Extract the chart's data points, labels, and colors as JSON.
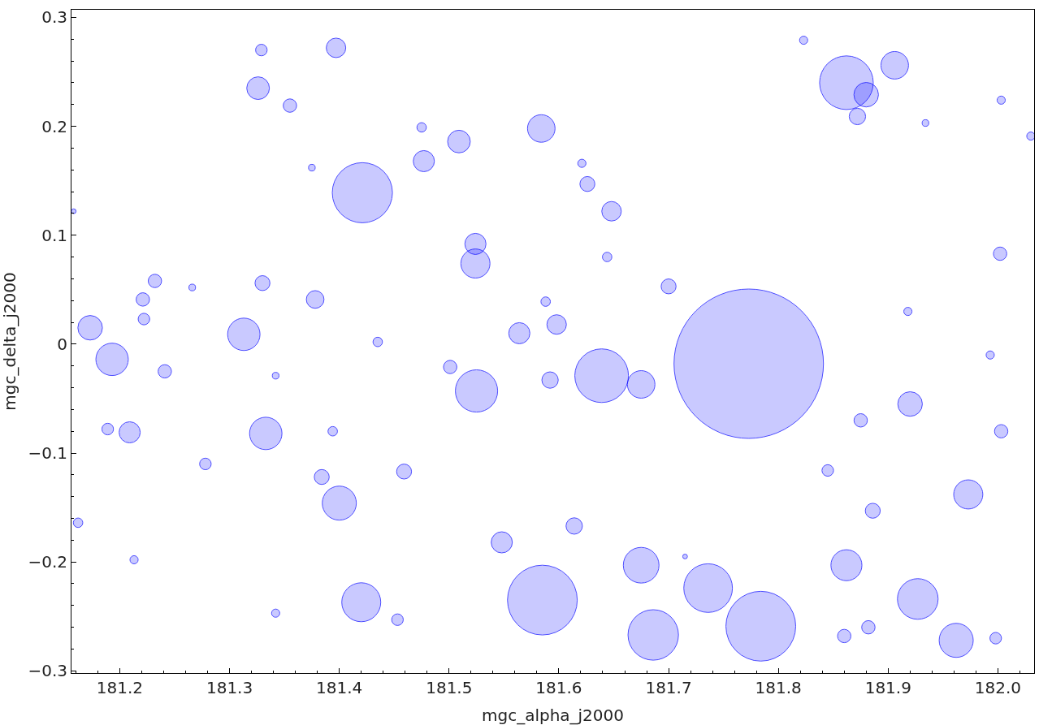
{
  "chart_data": {
    "type": "bubble",
    "xlabel": "mgc_alpha_j2000",
    "ylabel": "mgc_delta_j2000",
    "xlim": [
      181.156,
      182.033
    ],
    "ylim": [
      -0.302,
      0.307
    ],
    "xticks": [
      181.2,
      181.3,
      181.4,
      181.5,
      181.6,
      181.7,
      181.8,
      181.9,
      {
        "value": 182,
        "label": "182.0"
      }
    ],
    "yticks": [
      -0.3,
      -0.2,
      -0.1,
      0,
      0.1,
      0.2,
      0.3
    ],
    "marker": "circle",
    "series": [
      {
        "color": "#0000ff",
        "x": [
          181.773,
          181.421,
          181.585,
          181.862,
          181.784,
          181.686,
          181.736,
          181.639,
          181.525,
          181.333,
          181.313,
          181.193,
          181.173,
          181.42,
          181.4,
          181.927,
          181.962,
          181.973,
          181.862,
          181.92,
          181.675,
          181.326,
          181.584,
          181.509,
          181.88,
          181.397,
          181.648,
          181.598,
          181.524,
          181.524,
          181.477,
          181.548,
          181.564,
          181.209,
          181.241,
          181.378,
          181.355,
          181.626,
          181.675,
          181.872,
          181.221,
          181.232,
          181.33,
          181.459,
          181.592,
          182.003,
          182.002,
          181.875,
          181.886,
          181.86,
          181.882,
          181.998,
          181.845,
          181.501,
          181.435,
          181.278,
          181.222,
          181.7,
          181.614,
          181.453,
          181.384,
          181.189,
          181.162,
          181.213,
          181.342,
          181.329,
          181.906,
          182.003,
          182.03,
          181.934,
          181.823,
          181.588,
          181.475,
          181.621,
          181.644,
          181.918,
          181.993,
          181.394,
          181.342,
          181.375,
          181.715,
          181.266,
          181.158
        ],
        "values": [
          -0.018,
          0.139,
          -0.235,
          0.24,
          -0.259,
          -0.267,
          -0.224,
          -0.029,
          -0.043,
          -0.082,
          0.009,
          -0.014,
          0.015,
          -0.237,
          -0.146,
          -0.234,
          -0.272,
          -0.138,
          -0.203,
          -0.055,
          -0.203,
          0.235,
          0.198,
          0.186,
          0.229,
          0.272,
          0.122,
          0.018,
          0.074,
          0.092,
          0.168,
          -0.182,
          0.01,
          -0.081,
          -0.025,
          0.041,
          0.219,
          0.147,
          -0.037,
          0.209,
          0.041,
          0.058,
          0.056,
          -0.117,
          -0.033,
          -0.08,
          0.083,
          -0.07,
          -0.153,
          -0.268,
          -0.26,
          -0.27,
          -0.116,
          -0.021,
          0.002,
          -0.11,
          0.023,
          0.053,
          -0.167,
          -0.253,
          -0.122,
          -0.078,
          -0.164,
          -0.198,
          -0.247,
          0.27,
          0.256,
          0.224,
          0.191,
          0.203,
          0.279,
          0.039,
          0.199,
          0.166,
          0.08,
          0.03,
          -0.01,
          -0.08,
          -0.029,
          0.162,
          -0.195,
          0.052,
          0.122
        ],
        "sizes": [
          1,
          0.162,
          0.218,
          0.129,
          0.218,
          0.114,
          0.106,
          0.129,
          0.08,
          0.047,
          0.047,
          0.047,
          0.027,
          0.068,
          0.052,
          0.074,
          0.052,
          0.038,
          0.043,
          0.027,
          0.057,
          0.023,
          0.034,
          0.023,
          0.027,
          0.017,
          0.017,
          0.017,
          0.038,
          0.02,
          0.02,
          0.02,
          0.02,
          0.02,
          0.008,
          0.014,
          0.008,
          0.01,
          0.034,
          0.012,
          0.008,
          0.008,
          0.01,
          0.01,
          0.012,
          0.008,
          0.008,
          0.008,
          0.01,
          0.008,
          0.008,
          0.006,
          0.006,
          0.008,
          0.004,
          0.006,
          0.006,
          0.01,
          0.012,
          0.006,
          0.01,
          0.006,
          0.004,
          0.003,
          0.003,
          0.006,
          0.034,
          0.003,
          0.003,
          0.002,
          0.003,
          0.004,
          0.004,
          0.003,
          0.004,
          0.003,
          0.003,
          0.004,
          0.002,
          0.002,
          0.001,
          0.002,
          0.001
        ]
      }
    ]
  }
}
